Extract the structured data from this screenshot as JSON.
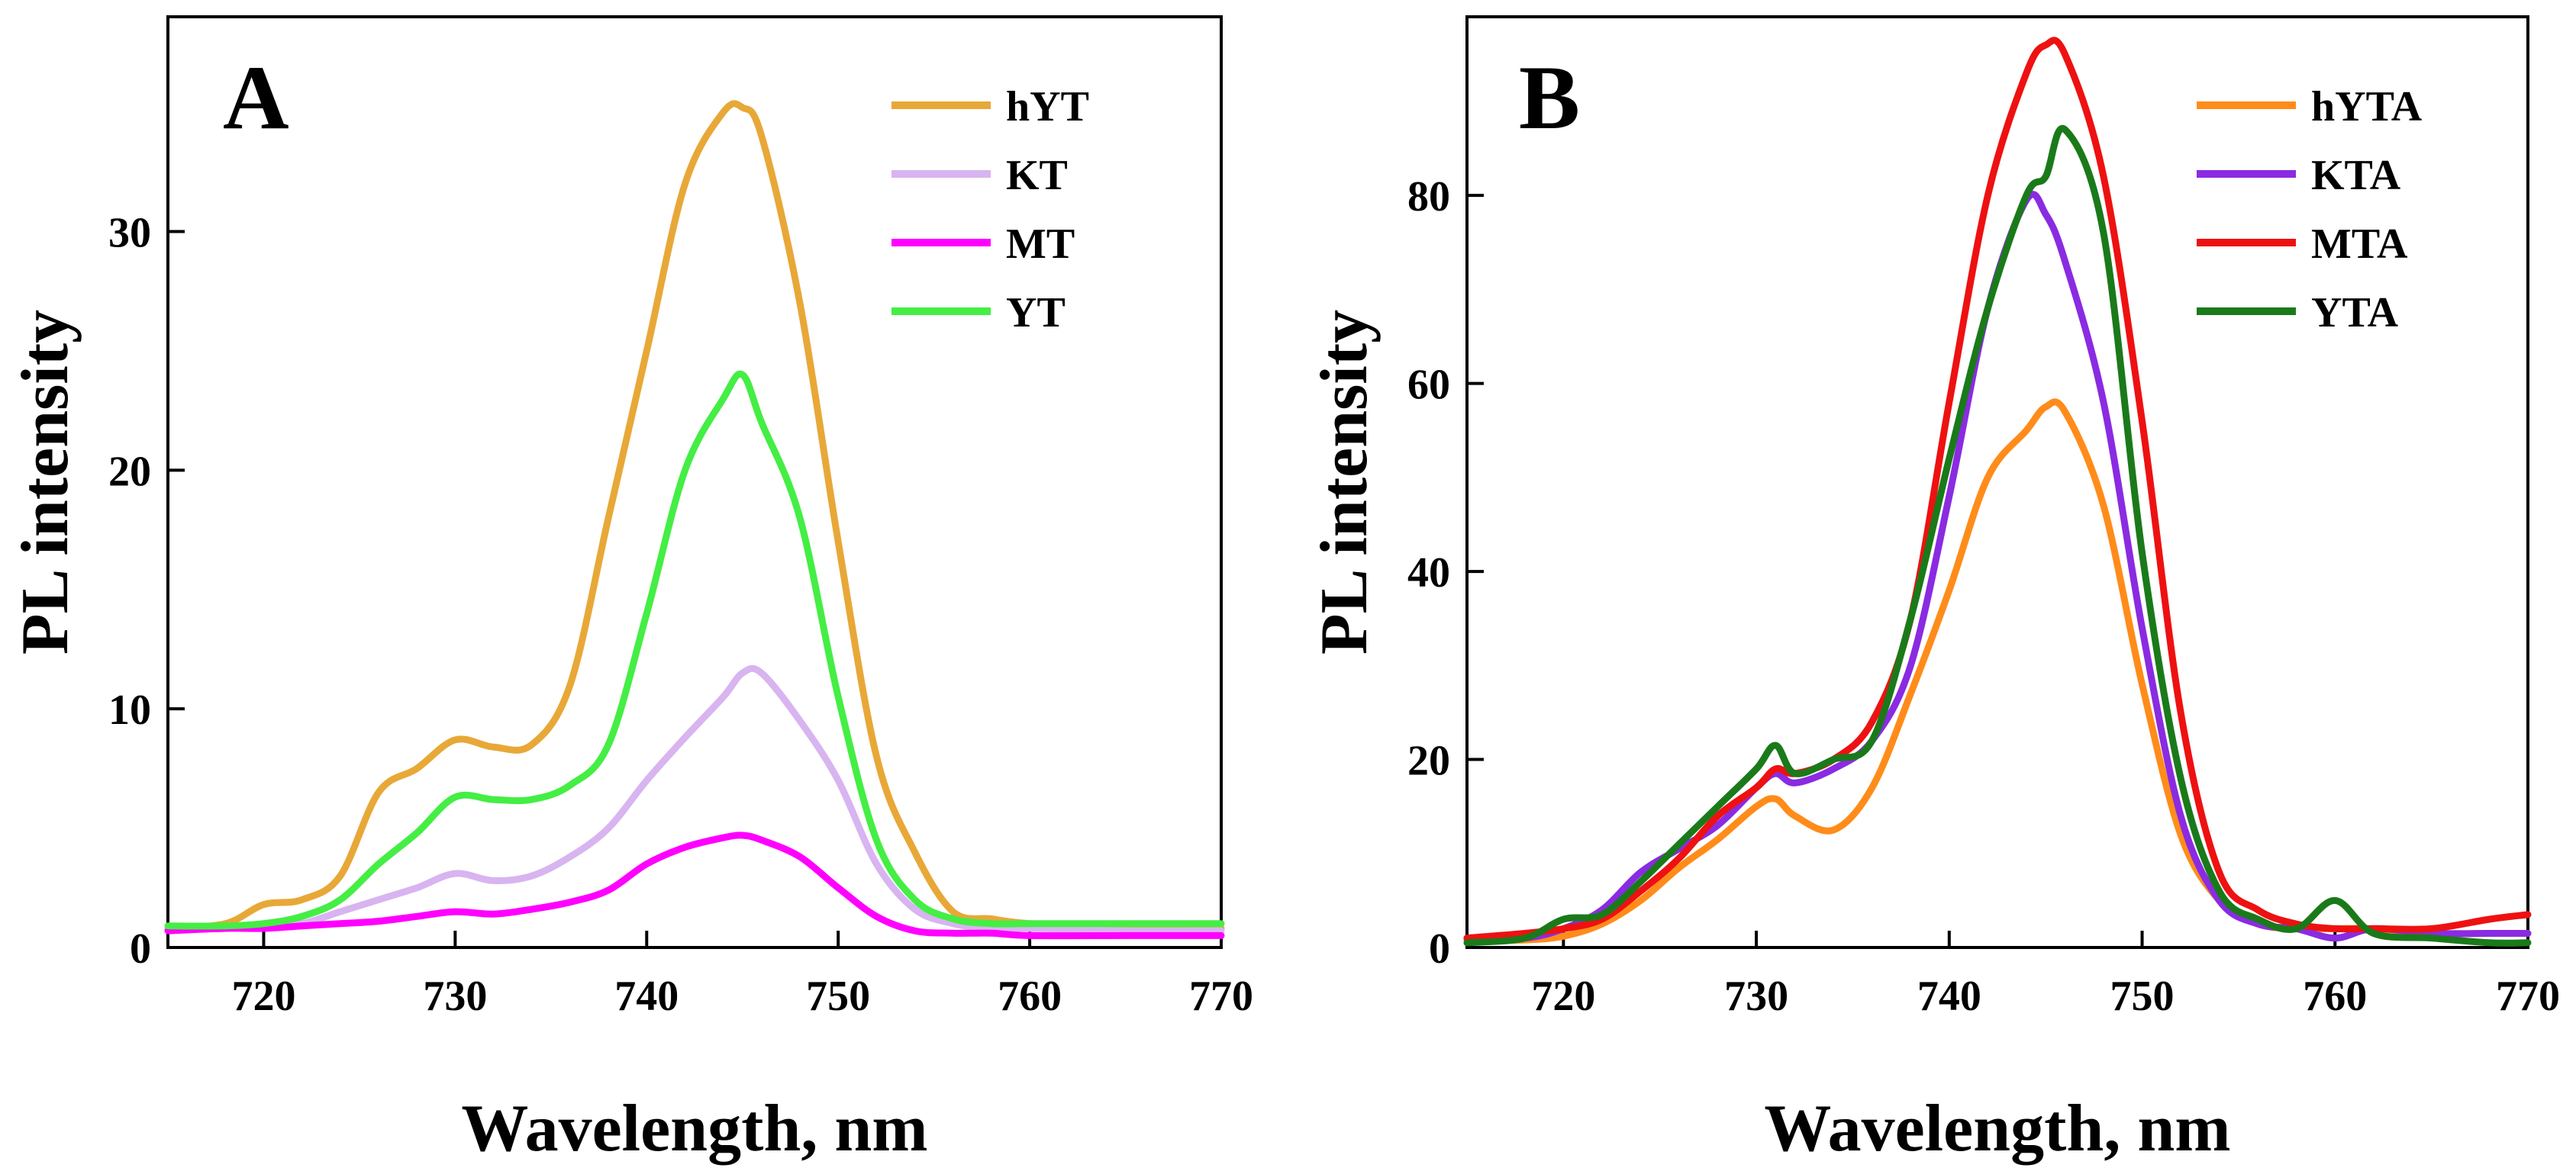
{
  "chart_data": [
    {
      "type": "line",
      "panel_label": "A",
      "xlabel": "Wavelength, nm",
      "ylabel": "PL intensity",
      "xlim": [
        715,
        770
      ],
      "ylim": [
        0,
        39
      ],
      "xticks": [
        720,
        730,
        740,
        750,
        760,
        770
      ],
      "yticks": [
        0,
        10,
        20,
        30
      ],
      "x": [
        715,
        718,
        720,
        722,
        724,
        726,
        728,
        730,
        732,
        734,
        736,
        738,
        740,
        742,
        744,
        745,
        746,
        748,
        750,
        752,
        754,
        756,
        758,
        760,
        765,
        770
      ],
      "series": [
        {
          "name": "hYT",
          "color": "#E8A838",
          "values": [
            0.8,
            1.0,
            1.8,
            2.0,
            3.0,
            6.5,
            7.5,
            8.7,
            8.4,
            8.5,
            11.0,
            18.0,
            25.0,
            32.0,
            35.0,
            35.2,
            34.0,
            27.0,
            17.0,
            8.0,
            4.0,
            1.5,
            1.2,
            1.0,
            0.8,
            0.8
          ]
        },
        {
          "name": "KT",
          "color": "#D8B4F0",
          "values": [
            0.8,
            0.8,
            0.9,
            1.0,
            1.5,
            2.0,
            2.5,
            3.1,
            2.8,
            3.0,
            3.8,
            5.0,
            7.0,
            8.8,
            10.5,
            11.5,
            11.5,
            9.5,
            7.0,
            3.5,
            1.6,
            1.0,
            0.8,
            0.8,
            0.7,
            0.7
          ]
        },
        {
          "name": "MT",
          "color": "#FF00FF",
          "values": [
            0.7,
            0.8,
            0.8,
            0.9,
            1.0,
            1.1,
            1.3,
            1.5,
            1.4,
            1.6,
            1.9,
            2.4,
            3.5,
            4.2,
            4.6,
            4.7,
            4.5,
            3.8,
            2.5,
            1.3,
            0.7,
            0.6,
            0.6,
            0.5,
            0.5,
            0.5
          ]
        },
        {
          "name": "YT",
          "color": "#44EE44",
          "values": [
            0.9,
            0.9,
            1.0,
            1.3,
            2.0,
            3.5,
            4.8,
            6.3,
            6.2,
            6.2,
            6.8,
            8.5,
            14.0,
            20.0,
            23.0,
            24.0,
            22.0,
            18.0,
            10.5,
            4.5,
            2.0,
            1.2,
            1.0,
            1.0,
            1.0,
            1.0
          ]
        }
      ]
    },
    {
      "type": "line",
      "panel_label": "B",
      "xlabel": "Wavelength, nm",
      "ylabel": "PL intensity",
      "xlim": [
        715,
        770
      ],
      "ylim": [
        0,
        99
      ],
      "xticks": [
        720,
        730,
        740,
        750,
        760,
        770
      ],
      "yticks": [
        0,
        20,
        40,
        60,
        80
      ],
      "x": [
        715,
        718,
        720,
        722,
        724,
        726,
        728,
        730,
        731,
        732,
        734,
        736,
        738,
        740,
        742,
        744,
        745,
        746,
        748,
        750,
        752,
        754,
        756,
        758,
        760,
        762,
        765,
        768,
        770
      ],
      "series": [
        {
          "name": "hYTA",
          "color": "#FF8C1A",
          "values": [
            0.8,
            0.8,
            1.2,
            2.5,
            5.0,
            8.5,
            11.5,
            15.0,
            15.8,
            14.0,
            12.5,
            17.0,
            27.0,
            38.0,
            50.0,
            55.0,
            57.5,
            57.0,
            47.0,
            28.0,
            12.0,
            5.0,
            2.5,
            2.0,
            2.0,
            2.0,
            1.5,
            1.5,
            1.5
          ]
        },
        {
          "name": "KTA",
          "color": "#8A2BE2",
          "values": [
            1.0,
            1.0,
            2.0,
            4.0,
            8.0,
            10.5,
            13.0,
            17.0,
            18.5,
            17.5,
            19.0,
            22.0,
            30.0,
            48.0,
            68.0,
            79.5,
            78.0,
            73.0,
            58.0,
            34.0,
            14.0,
            5.0,
            2.5,
            2.0,
            1.0,
            2.0,
            1.5,
            1.5,
            1.5
          ]
        },
        {
          "name": "MTA",
          "color": "#EE1111",
          "values": [
            1.0,
            1.5,
            2.0,
            3.0,
            6.0,
            9.5,
            14.0,
            17.0,
            19.0,
            18.5,
            20.0,
            24.0,
            35.0,
            58.0,
            80.0,
            93.0,
            96.0,
            95.0,
            82.0,
            56.0,
            25.0,
            8.0,
            4.0,
            2.5,
            2.0,
            2.0,
            2.0,
            3.0,
            3.5
          ]
        },
        {
          "name": "YTA",
          "color": "#1A7A1A",
          "values": [
            0.5,
            1.0,
            3.0,
            3.5,
            7.0,
            11.0,
            15.0,
            19.0,
            21.5,
            18.5,
            20.0,
            22.0,
            35.0,
            52.0,
            68.0,
            80.0,
            82.0,
            87.0,
            76.0,
            42.0,
            18.0,
            6.0,
            3.0,
            2.0,
            5.0,
            1.5,
            1.0,
            0.5,
            0.5
          ]
        }
      ]
    }
  ]
}
